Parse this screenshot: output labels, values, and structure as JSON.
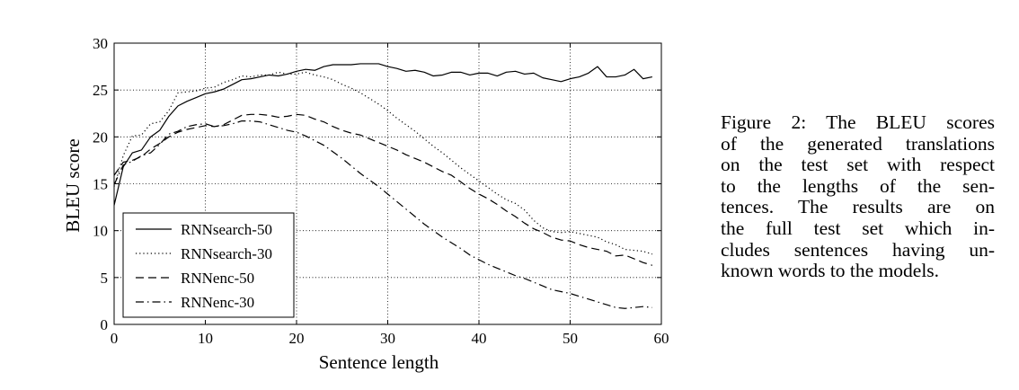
{
  "chart_data": {
    "type": "line",
    "xlabel": "Sentence length",
    "ylabel": "BLEU score",
    "xlim": [
      0,
      60
    ],
    "ylim": [
      0,
      30
    ],
    "xticks": [
      0,
      10,
      20,
      30,
      40,
      50,
      60
    ],
    "yticks": [
      0,
      5,
      10,
      15,
      20,
      25,
      30
    ],
    "grid": true,
    "legend_position": "lower-left",
    "x": [
      0,
      1,
      2,
      3,
      4,
      5,
      6,
      7,
      8,
      9,
      10,
      11,
      12,
      13,
      14,
      15,
      16,
      17,
      18,
      19,
      20,
      21,
      22,
      23,
      24,
      25,
      26,
      27,
      28,
      29,
      30,
      31,
      32,
      33,
      34,
      35,
      36,
      37,
      38,
      39,
      40,
      41,
      42,
      43,
      44,
      45,
      46,
      47,
      48,
      49,
      50,
      51,
      52,
      53,
      54,
      55,
      56,
      57,
      58,
      59
    ],
    "series": [
      {
        "name": "RNNsearch-50",
        "style": "solid",
        "values": [
          12.7,
          16.8,
          18.3,
          18.6,
          20.0,
          20.7,
          22.2,
          23.3,
          23.8,
          24.2,
          24.6,
          24.8,
          25.1,
          25.6,
          26.1,
          26.2,
          26.4,
          26.6,
          26.5,
          26.7,
          27.0,
          27.2,
          27.1,
          27.5,
          27.7,
          27.7,
          27.7,
          27.8,
          27.8,
          27.8,
          27.5,
          27.3,
          27.0,
          27.1,
          26.9,
          26.5,
          26.6,
          26.9,
          26.9,
          26.6,
          26.8,
          26.8,
          26.5,
          26.9,
          27.0,
          26.7,
          26.8,
          26.3,
          26.1,
          25.9,
          26.2,
          26.4,
          26.8,
          27.5,
          26.4,
          26.4,
          26.6,
          27.2,
          26.2,
          26.4
        ]
      },
      {
        "name": "RNNsearch-30",
        "style": "dotted",
        "values": [
          14.7,
          18.0,
          20.1,
          20.2,
          21.4,
          21.6,
          22.8,
          24.7,
          24.8,
          24.9,
          25.2,
          25.3,
          25.8,
          26.1,
          26.5,
          26.4,
          26.6,
          26.6,
          26.9,
          26.7,
          26.7,
          26.9,
          26.6,
          26.4,
          26.1,
          25.6,
          25.2,
          24.7,
          24.1,
          23.5,
          22.8,
          22.0,
          21.3,
          20.6,
          19.8,
          19.0,
          18.3,
          17.5,
          16.7,
          16.0,
          15.3,
          14.6,
          13.9,
          13.3,
          12.9,
          12.2,
          11.1,
          10.3,
          9.9,
          9.8,
          9.9,
          9.7,
          9.5,
          9.3,
          8.8,
          8.5,
          8.0,
          7.9,
          7.8,
          7.5
        ]
      },
      {
        "name": "RNNenc-50",
        "style": "dashed",
        "values": [
          15.9,
          17.3,
          17.5,
          17.9,
          18.7,
          19.3,
          20.0,
          20.5,
          20.8,
          21.0,
          21.2,
          21.1,
          21.3,
          21.8,
          22.3,
          22.4,
          22.4,
          22.3,
          22.1,
          22.2,
          22.4,
          22.3,
          21.9,
          21.6,
          21.1,
          20.7,
          20.4,
          20.2,
          19.8,
          19.4,
          19.0,
          18.6,
          18.1,
          17.7,
          17.3,
          16.8,
          16.3,
          15.9,
          15.2,
          14.5,
          13.9,
          13.4,
          12.8,
          12.1,
          11.5,
          10.8,
          10.2,
          9.8,
          9.3,
          9.0,
          8.9,
          8.5,
          8.2,
          8.0,
          7.8,
          7.3,
          7.4,
          7.0,
          6.6,
          6.3
        ]
      },
      {
        "name": "RNNenc-30",
        "style": "dashdot",
        "values": [
          14.9,
          17.0,
          17.4,
          18.0,
          18.3,
          19.2,
          20.3,
          20.6,
          21.1,
          21.3,
          21.4,
          21.1,
          21.2,
          21.4,
          21.7,
          21.7,
          21.6,
          21.3,
          21.0,
          20.7,
          20.5,
          20.1,
          19.6,
          19.1,
          18.4,
          17.7,
          16.9,
          16.1,
          15.4,
          14.7,
          13.9,
          13.1,
          12.3,
          11.5,
          10.7,
          10.0,
          9.3,
          8.7,
          8.1,
          7.4,
          6.9,
          6.4,
          6.0,
          5.6,
          5.2,
          4.9,
          4.5,
          4.1,
          3.7,
          3.5,
          3.3,
          3.0,
          2.7,
          2.4,
          2.1,
          1.8,
          1.7,
          1.8,
          1.9,
          1.8
        ]
      }
    ]
  },
  "caption": {
    "lines": [
      "Figure 2:  The BLEU scores",
      "of the generated translations",
      "on the test set with respect",
      "to the lengths of the sen-",
      "tences.  The results are on",
      "the full test set which in-",
      "cludes sentences having un-",
      "known words to the models."
    ]
  }
}
